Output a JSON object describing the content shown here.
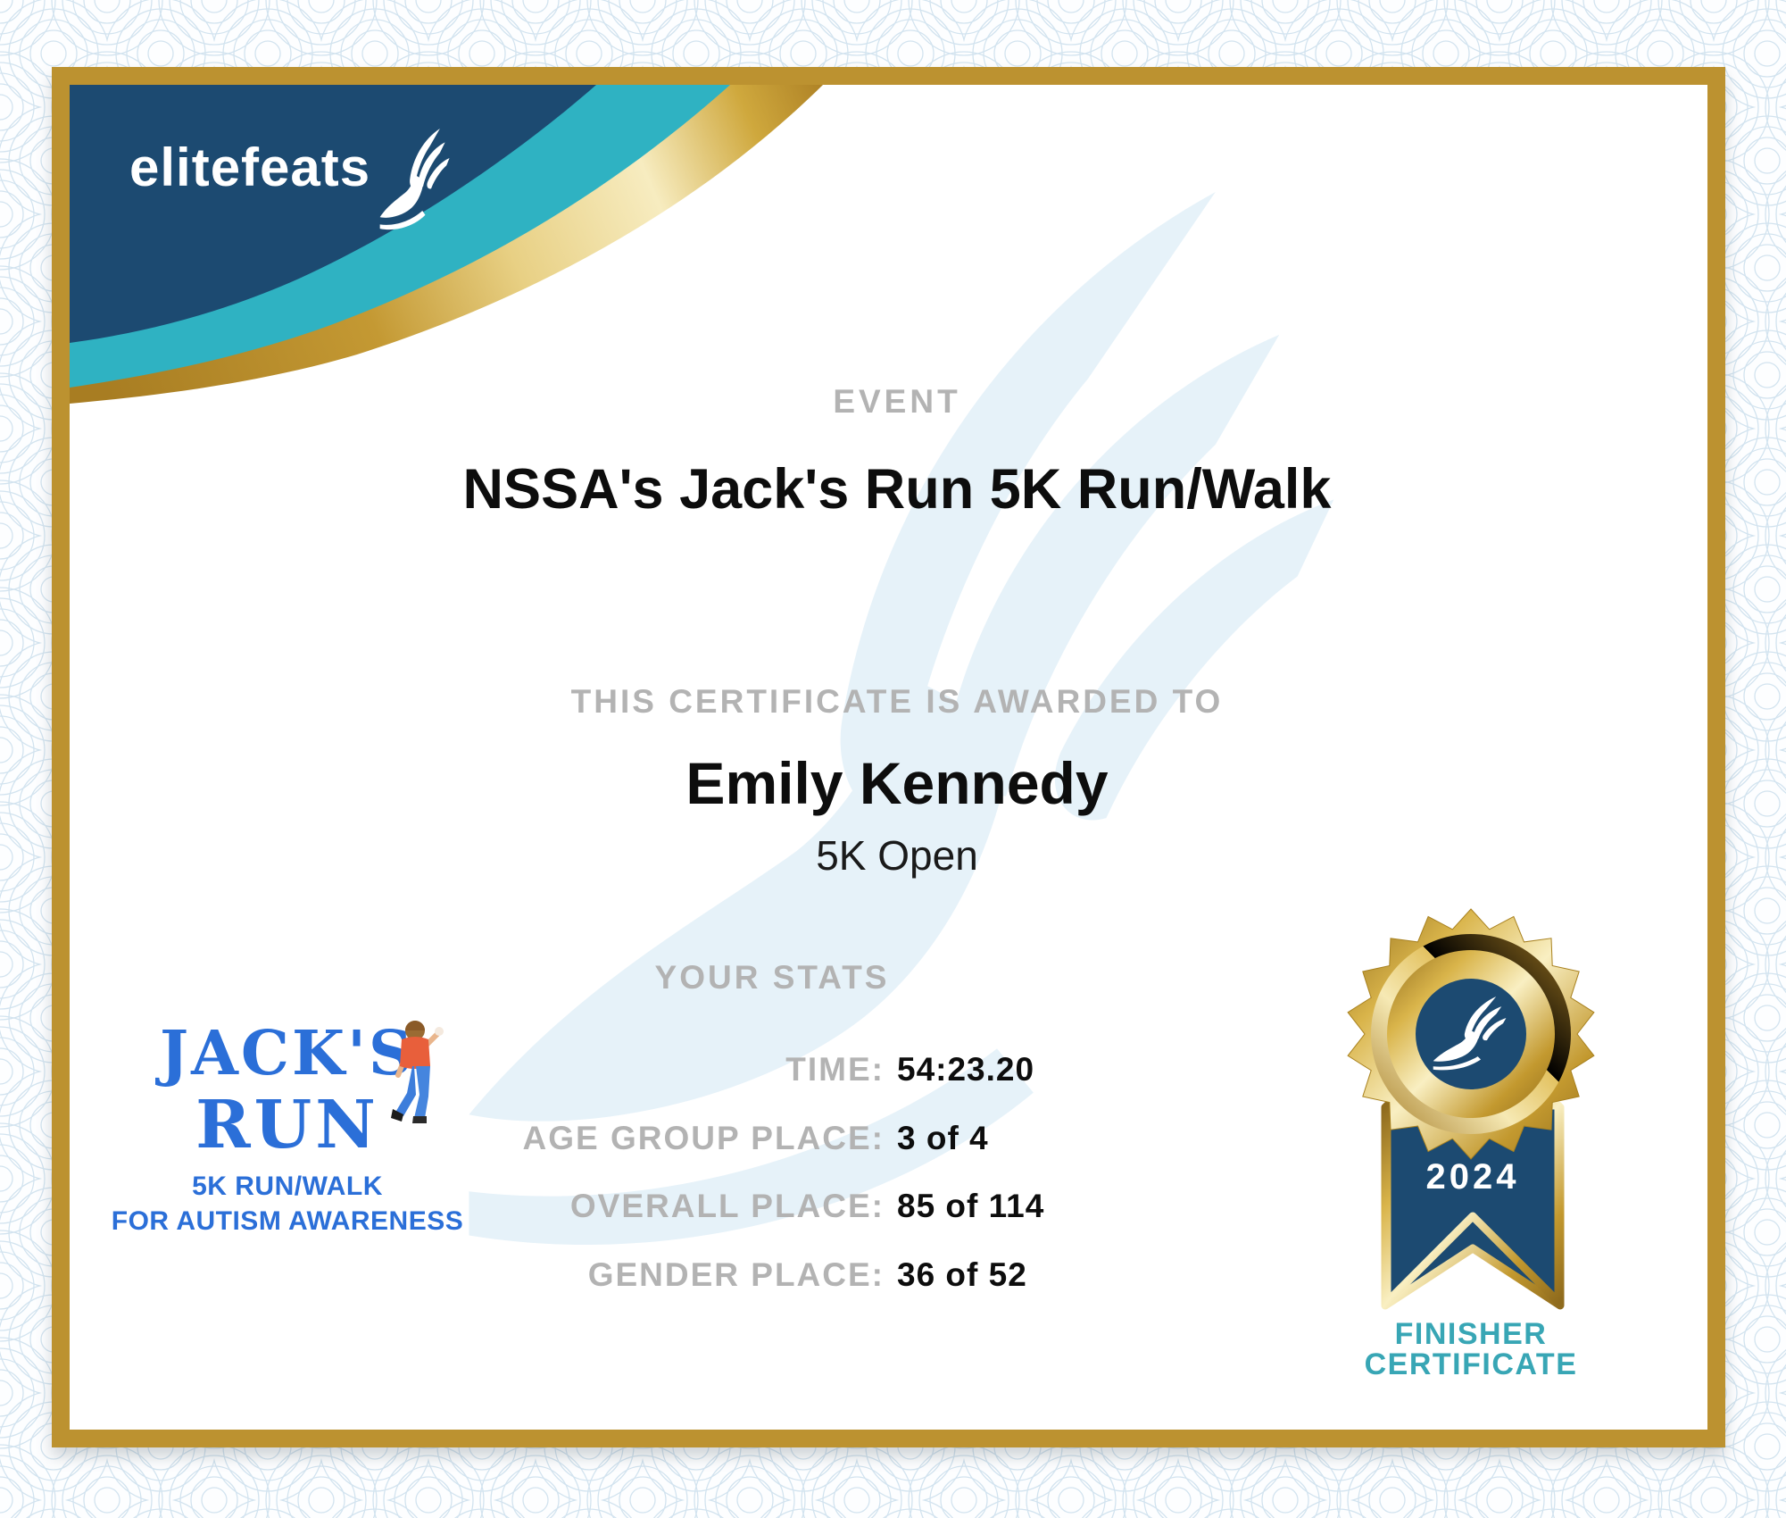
{
  "brand": {
    "name": "elitefeats",
    "icon": "winged-foot-icon"
  },
  "event": {
    "section_label": "EVENT",
    "title": "NSSA's Jack's Run 5K Run/Walk"
  },
  "award": {
    "section_label": "THIS CERTIFICATE IS AWARDED TO",
    "recipient": "Emily Kennedy",
    "division": "5K Open"
  },
  "stats": {
    "section_label": "YOUR STATS",
    "rows": [
      {
        "label": "TIME:",
        "value": "54:23.20"
      },
      {
        "label": "AGE GROUP PLACE:",
        "value": "3 of 4"
      },
      {
        "label": "OVERALL PLACE:",
        "value": "85 of 114"
      },
      {
        "label": "GENDER PLACE:",
        "value": "36 of 52"
      }
    ]
  },
  "race_logo": {
    "title_line1": "JACK'S",
    "title_line2": "RUN",
    "subtitle_line1": "5K RUN/WALK",
    "subtitle_line2": "FOR AUTISM AWARENESS",
    "mascot": "running-child-icon"
  },
  "medal": {
    "year": "2024",
    "caption_line1": "FINISHER",
    "caption_line2": "CERTIFICATE"
  },
  "colors": {
    "navy": "#1c4a71",
    "teal": "#2fb2c2",
    "frame_gold": "#bc9230",
    "jacks_blue": "#2b6fd8",
    "finisher_teal": "#38a6b5",
    "muted_label": "#b3b3b3",
    "watermark_blue": "#e6f2f9",
    "text_black": "#0d0d0d",
    "kid_shirt_orange": "#e85f3b",
    "kid_pants_blue": "#3d7ddb"
  }
}
